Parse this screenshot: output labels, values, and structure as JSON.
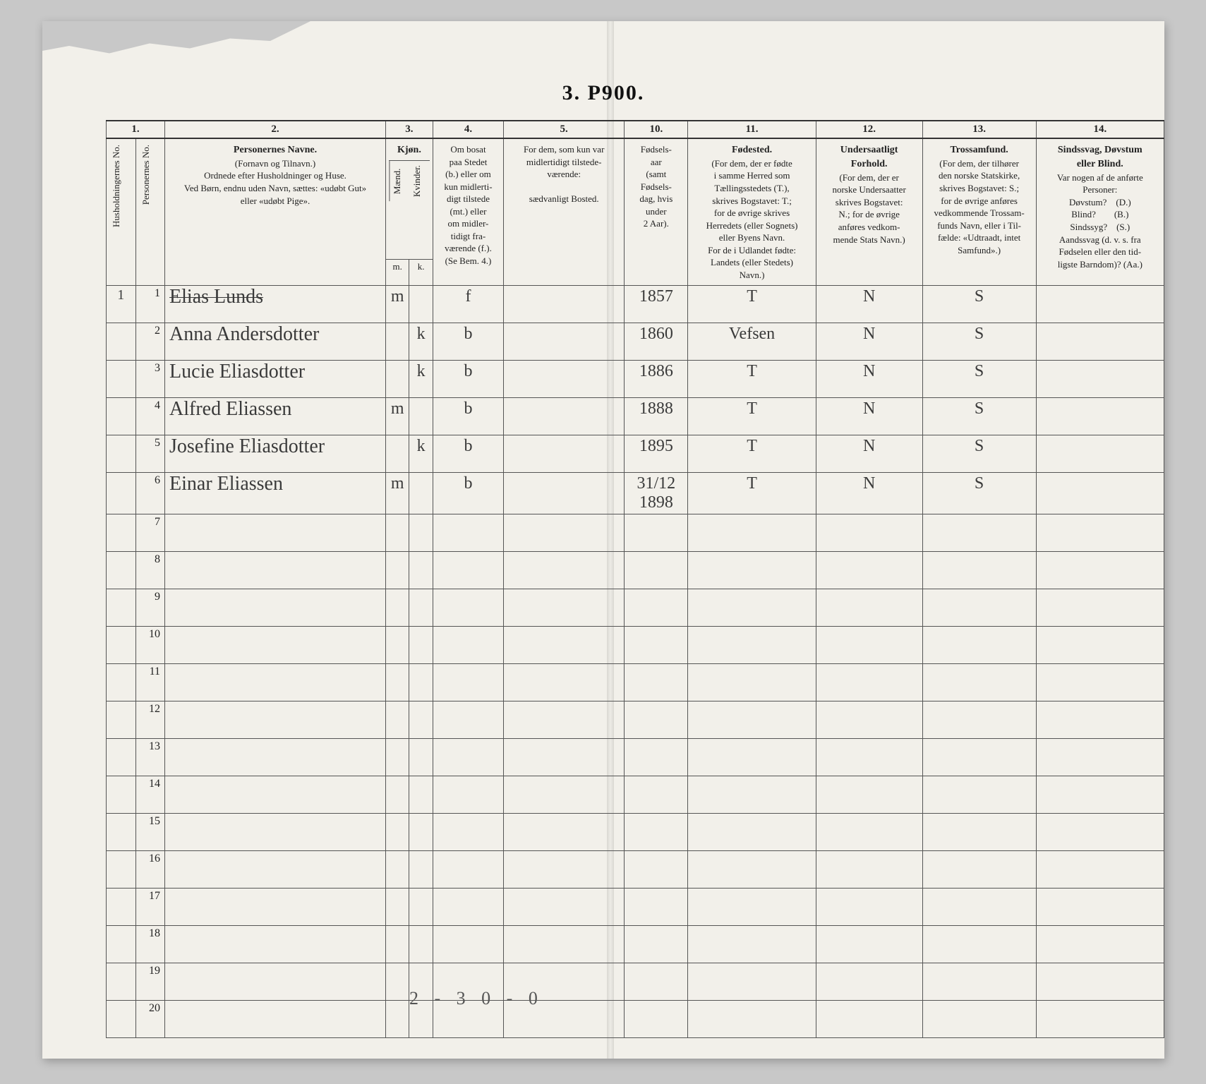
{
  "title": "3. P900.",
  "columns_top": [
    "1.",
    "2.",
    "3.",
    "4.",
    "5.",
    "10.",
    "11.",
    "12.",
    "13.",
    "14."
  ],
  "headers": {
    "h1a": "Husholdningernes No.",
    "h1b": "Personernes No.",
    "h2_title": "Personernes Navne.",
    "h2_sub": "(Fornavn og Tilnavn.)\nOrdnede efter Husholdninger og Huse.\nVed Børn, endnu uden Navn, sættes: «udøbt Gut»\neller «udøbt Pige».",
    "h3_title": "Kjøn.",
    "h3_sub1": "Mænd.",
    "h3_sub2": "Kvinder.",
    "h3_m": "m.",
    "h3_k": "k.",
    "h4": "Om bosat\npaa Stedet\n(b.) eller om\nkun midlerti-\ndigt tilstede\n(mt.) eller\nom midler-\ntidigt fra-\nværende (f.).\n(Se Bem. 4.)",
    "h5": "For dem, som kun var\nmidlertidigt tilstede-\nværende:\n\nsædvanligt Bosted.",
    "h10": "Fødsels-\naar\n(samt\nFødsels-\ndag, hvis\nunder\n2 Aar).",
    "h11_title": "Fødested.",
    "h11": "(For dem, der er fødte\ni samme Herred som\nTællingsstedets (T.),\nskrives Bogstavet: T.;\nfor de øvrige skrives\nHerredets (eller Sognets)\neller Byens Navn.\nFor de i Udlandet fødte:\nLandets (eller Stedets)\nNavn.)",
    "h12_title": "Undersaatligt\nForhold.",
    "h12": "(For dem, der er\nnorske Undersaatter\nskrives Bogstavet:\nN.; for de øvrige\nanføres vedkom-\nmende Stats Navn.)",
    "h13_title": "Trossamfund.",
    "h13": "(For dem, der tilhører\nden norske Statskirke,\nskrives Bogstavet: S.;\nfor de øvrige anføres\nvedkommende Trossam-\nfunds Navn, eller i Til-\nfælde: «Udtraadt, intet\nSamfund».)",
    "h14_title": "Sindssvag, Døvstum\neller Blind.",
    "h14": "Var nogen af de anførte\nPersoner:\nDøvstum? (D.)\nBlind?  (B.)\nSindssyg? (S.)\nAandssvag (d. v. s. fra\nFødselen eller den tid-\nligste Barndom)? (Aa.)"
  },
  "rows": [
    {
      "hh": "1",
      "no": "1",
      "name": "Elias Lunds",
      "struck": true,
      "sex": "m",
      "mk": "m",
      "bf": "f",
      "res": "",
      "year": "1857",
      "birthplace": "T",
      "nat": "N",
      "faith": "S",
      "dis": ""
    },
    {
      "hh": "",
      "no": "2",
      "name": "Anna Andersdotter",
      "struck": false,
      "sex": "k",
      "mk": "k",
      "bf": "b",
      "res": "",
      "year": "1860",
      "birthplace": "Vefsen",
      "nat": "N",
      "faith": "S",
      "dis": ""
    },
    {
      "hh": "",
      "no": "3",
      "name": "Lucie Eliasdotter",
      "struck": false,
      "sex": "k",
      "mk": "k",
      "bf": "b",
      "res": "",
      "year": "1886",
      "birthplace": "T",
      "nat": "N",
      "faith": "S",
      "dis": ""
    },
    {
      "hh": "",
      "no": "4",
      "name": "Alfred Eliassen",
      "struck": false,
      "sex": "m",
      "mk": "m",
      "bf": "b",
      "res": "",
      "year": "1888",
      "birthplace": "T",
      "nat": "N",
      "faith": "S",
      "dis": ""
    },
    {
      "hh": "",
      "no": "5",
      "name": "Josefine Eliasdotter",
      "struck": false,
      "sex": "k",
      "mk": "k",
      "bf": "b",
      "res": "",
      "year": "1895",
      "birthplace": "T",
      "nat": "N",
      "faith": "S",
      "dis": ""
    },
    {
      "hh": "",
      "no": "6",
      "name": "Einar Eliassen",
      "struck": false,
      "sex": "m",
      "mk": "m",
      "bf": "b",
      "res": "",
      "year": "31/12 1898",
      "birthplace": "T",
      "nat": "N",
      "faith": "S",
      "dis": ""
    },
    {
      "hh": "",
      "no": "7",
      "name": "",
      "struck": false,
      "sex": "",
      "mk": "",
      "bf": "",
      "res": "",
      "year": "",
      "birthplace": "",
      "nat": "",
      "faith": "",
      "dis": ""
    },
    {
      "hh": "",
      "no": "8",
      "name": "",
      "struck": false,
      "sex": "",
      "mk": "",
      "bf": "",
      "res": "",
      "year": "",
      "birthplace": "",
      "nat": "",
      "faith": "",
      "dis": ""
    },
    {
      "hh": "",
      "no": "9",
      "name": "",
      "struck": false,
      "sex": "",
      "mk": "",
      "bf": "",
      "res": "",
      "year": "",
      "birthplace": "",
      "nat": "",
      "faith": "",
      "dis": ""
    },
    {
      "hh": "",
      "no": "10",
      "name": "",
      "struck": false,
      "sex": "",
      "mk": "",
      "bf": "",
      "res": "",
      "year": "",
      "birthplace": "",
      "nat": "",
      "faith": "",
      "dis": ""
    },
    {
      "hh": "",
      "no": "11",
      "name": "",
      "struck": false,
      "sex": "",
      "mk": "",
      "bf": "",
      "res": "",
      "year": "",
      "birthplace": "",
      "nat": "",
      "faith": "",
      "dis": ""
    },
    {
      "hh": "",
      "no": "12",
      "name": "",
      "struck": false,
      "sex": "",
      "mk": "",
      "bf": "",
      "res": "",
      "year": "",
      "birthplace": "",
      "nat": "",
      "faith": "",
      "dis": ""
    },
    {
      "hh": "",
      "no": "13",
      "name": "",
      "struck": false,
      "sex": "",
      "mk": "",
      "bf": "",
      "res": "",
      "year": "",
      "birthplace": "",
      "nat": "",
      "faith": "",
      "dis": ""
    },
    {
      "hh": "",
      "no": "14",
      "name": "",
      "struck": false,
      "sex": "",
      "mk": "",
      "bf": "",
      "res": "",
      "year": "",
      "birthplace": "",
      "nat": "",
      "faith": "",
      "dis": ""
    },
    {
      "hh": "",
      "no": "15",
      "name": "",
      "struck": false,
      "sex": "",
      "mk": "",
      "bf": "",
      "res": "",
      "year": "",
      "birthplace": "",
      "nat": "",
      "faith": "",
      "dis": ""
    },
    {
      "hh": "",
      "no": "16",
      "name": "",
      "struck": false,
      "sex": "",
      "mk": "",
      "bf": "",
      "res": "",
      "year": "",
      "birthplace": "",
      "nat": "",
      "faith": "",
      "dis": ""
    },
    {
      "hh": "",
      "no": "17",
      "name": "",
      "struck": false,
      "sex": "",
      "mk": "",
      "bf": "",
      "res": "",
      "year": "",
      "birthplace": "",
      "nat": "",
      "faith": "",
      "dis": ""
    },
    {
      "hh": "",
      "no": "18",
      "name": "",
      "struck": false,
      "sex": "",
      "mk": "",
      "bf": "",
      "res": "",
      "year": "",
      "birthplace": "",
      "nat": "",
      "faith": "",
      "dis": ""
    },
    {
      "hh": "",
      "no": "19",
      "name": "",
      "struck": false,
      "sex": "",
      "mk": "",
      "bf": "",
      "res": "",
      "year": "",
      "birthplace": "",
      "nat": "",
      "faith": "",
      "dis": ""
    },
    {
      "hh": "",
      "no": "20",
      "name": "",
      "struck": false,
      "sex": "",
      "mk": "",
      "bf": "",
      "res": "",
      "year": "",
      "birthplace": "",
      "nat": "",
      "faith": "",
      "dis": ""
    }
  ],
  "footer_note": "2 - 3    0 - 0",
  "colors": {
    "page_bg": "#f2f0ea",
    "outer_bg": "#c8c8c8",
    "ink": "#222222",
    "handwriting": "#3a3a3a",
    "rule": "#555555"
  }
}
